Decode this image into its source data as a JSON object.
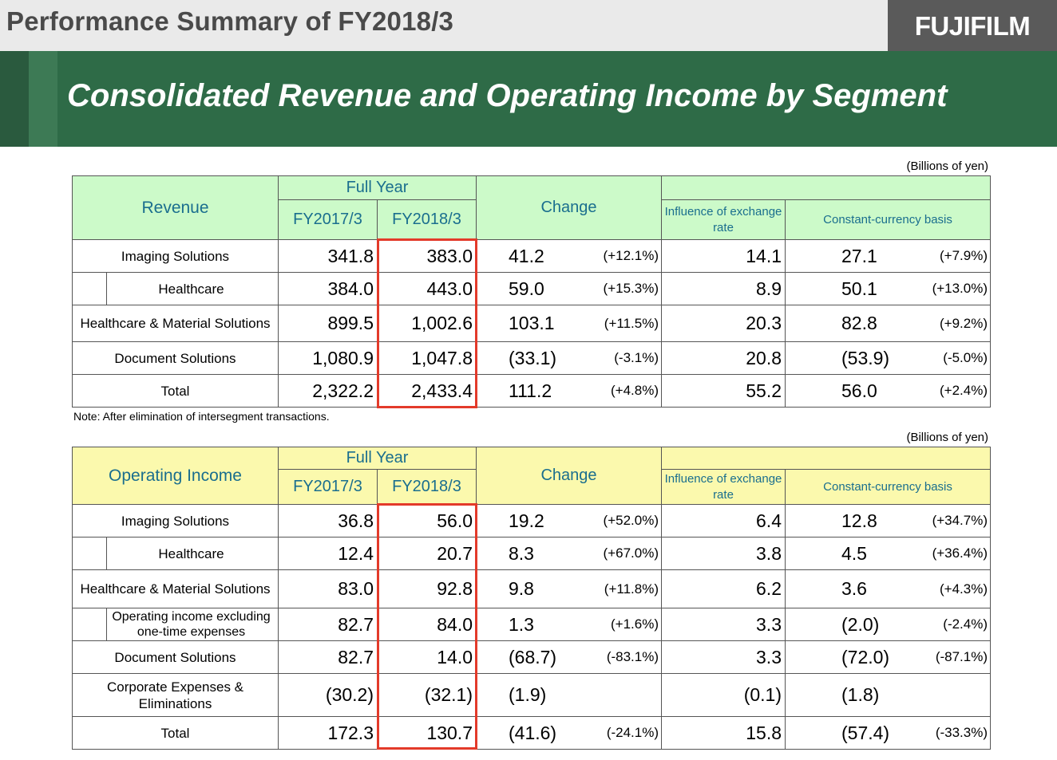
{
  "header": {
    "title": "Performance Summary of FY2018/3",
    "logo_text": "FUJIFILM",
    "banner_title": "Consolidated Revenue and Operating Income by Segment"
  },
  "units": "(Billions of yen)",
  "note": "Note: After elimination of  intersegment transactions.",
  "colors": {
    "banner": "#2e6b47",
    "revenue_header": "#ccfac9",
    "operating_header": "#fbf9ad",
    "highlight": "#e33a2a"
  },
  "revenue": {
    "label": "Revenue",
    "full_year": "Full Year",
    "fy_prev": "FY2017/3",
    "fy_curr": "FY2018/3",
    "change": "Change",
    "influence": "Influence of exchange rate",
    "constant": "Constant-currency basis",
    "rows": [
      {
        "name": "Imaging Solutions",
        "prev": "341.8",
        "curr": "383.0",
        "chg": "41.2",
        "chg_pct": "(+12.1%)",
        "fx": "14.1",
        "cc": "27.1",
        "cc_pct": "(+7.9%)"
      },
      {
        "name": "Healthcare",
        "prev": "384.0",
        "curr": "443.0",
        "chg": "59.0",
        "chg_pct": "(+15.3%)",
        "fx": "8.9",
        "cc": "50.1",
        "cc_pct": "(+13.0%)"
      },
      {
        "name": "Healthcare & Material Solutions",
        "prev": "899.5",
        "curr": "1,002.6",
        "chg": "103.1",
        "chg_pct": "(+11.5%)",
        "fx": "20.3",
        "cc": "82.8",
        "cc_pct": "(+9.2%)"
      },
      {
        "name": "Document Solutions",
        "prev": "1,080.9",
        "curr": "1,047.8",
        "chg": "(33.1)",
        "chg_pct": "(-3.1%)",
        "fx": "20.8",
        "cc": "(53.9)",
        "cc_pct": "(-5.0%)"
      },
      {
        "name": "Total",
        "prev": "2,322.2",
        "curr": "2,433.4",
        "chg": "111.2",
        "chg_pct": "(+4.8%)",
        "fx": "55.2",
        "cc": "56.0",
        "cc_pct": "(+2.4%)"
      }
    ]
  },
  "operating": {
    "label": "Operating Income",
    "full_year": "Full Year",
    "fy_prev": "FY2017/3",
    "fy_curr": "FY2018/3",
    "change": "Change",
    "influence": "Influence of exchange rate",
    "constant": "Constant-currency basis",
    "rows": [
      {
        "name": "Imaging Solutions",
        "prev": "36.8",
        "curr": "56.0",
        "chg": "19.2",
        "chg_pct": "(+52.0%)",
        "fx": "6.4",
        "cc": "12.8",
        "cc_pct": "(+34.7%)"
      },
      {
        "name": "Healthcare",
        "prev": "12.4",
        "curr": "20.7",
        "chg": "8.3",
        "chg_pct": "(+67.0%)",
        "fx": "3.8",
        "cc": "4.5",
        "cc_pct": "(+36.4%)"
      },
      {
        "name": "Healthcare & Material Solutions",
        "prev": "83.0",
        "curr": "92.8",
        "chg": "9.8",
        "chg_pct": "(+11.8%)",
        "fx": "6.2",
        "cc": "3.6",
        "cc_pct": "(+4.3%)"
      },
      {
        "name": "Operating income excluding one-time expenses",
        "prev": "82.7",
        "curr": "84.0",
        "chg": "1.3",
        "chg_pct": "(+1.6%)",
        "fx": "3.3",
        "cc": "(2.0)",
        "cc_pct": "(-2.4%)"
      },
      {
        "name": "Document Solutions",
        "prev": "82.7",
        "curr": "14.0",
        "chg": "(68.7)",
        "chg_pct": "(-83.1%)",
        "fx": "3.3",
        "cc": "(72.0)",
        "cc_pct": "(-87.1%)"
      },
      {
        "name": "Corporate Expenses & Eliminations",
        "prev": "(30.2)",
        "curr": "(32.1)",
        "chg": "(1.9)",
        "chg_pct": "",
        "fx": "(0.1)",
        "cc": "(1.8)",
        "cc_pct": ""
      },
      {
        "name": "Total",
        "prev": "172.3",
        "curr": "130.7",
        "chg": "(41.6)",
        "chg_pct": "(-24.1%)",
        "fx": "15.8",
        "cc": "(57.4)",
        "cc_pct": "(-33.3%)"
      }
    ]
  }
}
